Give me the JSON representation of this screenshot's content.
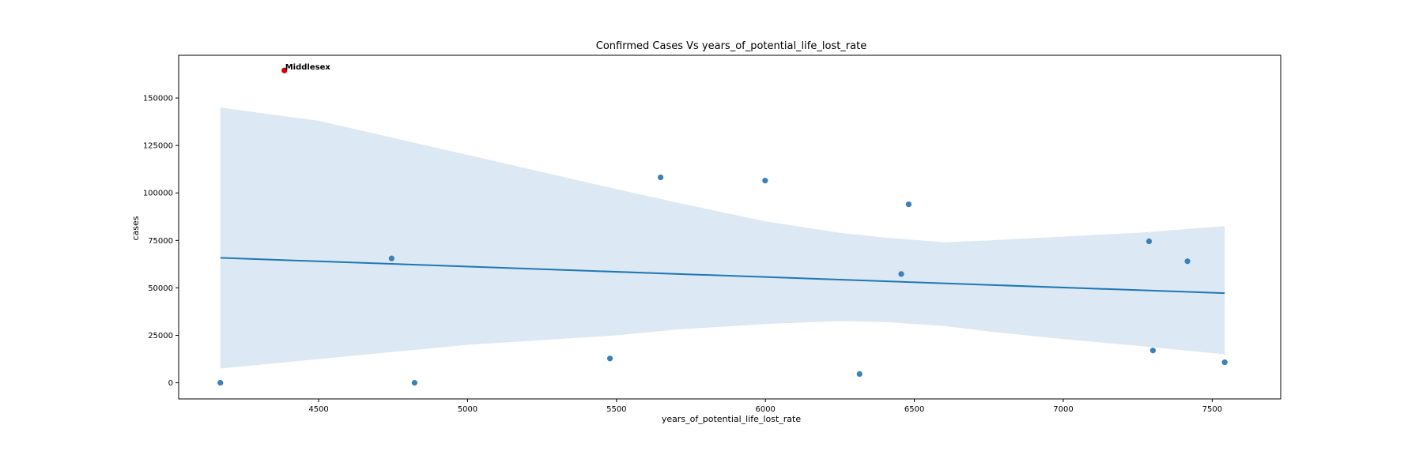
{
  "chart_data": {
    "type": "scatter",
    "title": "Confirmed Cases Vs years_of_potential_life_lost_rate",
    "xlabel": "years_of_potential_life_lost_rate",
    "ylabel": "cases",
    "xlim": [
      4030,
      7730
    ],
    "ylim": [
      -8500,
      172500
    ],
    "xticks": [
      4500,
      5000,
      5500,
      6000,
      6500,
      7000,
      7500
    ],
    "xtick_labels": [
      "4500",
      "5000",
      "5500",
      "6000",
      "6500",
      "7000",
      "7500"
    ],
    "yticks": [
      0,
      25000,
      50000,
      75000,
      100000,
      125000,
      150000
    ],
    "ytick_labels": [
      "0",
      "25000",
      "50000",
      "75000",
      "100000",
      "125000",
      "150000"
    ],
    "grid": false,
    "colors": {
      "points": "#3a80b9",
      "line": "#1f77b4",
      "band": "#dce8f3",
      "highlight": "#d40000"
    },
    "points": [
      {
        "x": 4170,
        "y": 0
      },
      {
        "x": 4745,
        "y": 65500
      },
      {
        "x": 4822,
        "y": 0
      },
      {
        "x": 5478,
        "y": 12800
      },
      {
        "x": 5648,
        "y": 108200
      },
      {
        "x": 5999,
        "y": 106500
      },
      {
        "x": 6316,
        "y": 4600
      },
      {
        "x": 6456,
        "y": 57300
      },
      {
        "x": 6481,
        "y": 94000
      },
      {
        "x": 7288,
        "y": 74500
      },
      {
        "x": 7301,
        "y": 17000
      },
      {
        "x": 7417,
        "y": 64000
      },
      {
        "x": 7542,
        "y": 10800
      }
    ],
    "highlight": {
      "x": 4385,
      "y": 164500,
      "label": "Middlesex"
    },
    "regression": {
      "x": [
        4170,
        7542
      ],
      "y": [
        65800,
        47200
      ]
    },
    "confidence_band": {
      "x": [
        4170,
        4500,
        5000,
        5500,
        5700,
        6000,
        6250,
        6400,
        6600,
        6750,
        7000,
        7250,
        7542
      ],
      "upper": [
        145000,
        138000,
        120000,
        102000,
        95000,
        85000,
        79000,
        76500,
        74000,
        75000,
        77000,
        79000,
        82500
      ],
      "lower": [
        7500,
        12500,
        20000,
        25000,
        28000,
        31000,
        32500,
        32000,
        30000,
        27000,
        23000,
        19500,
        15000
      ]
    }
  }
}
